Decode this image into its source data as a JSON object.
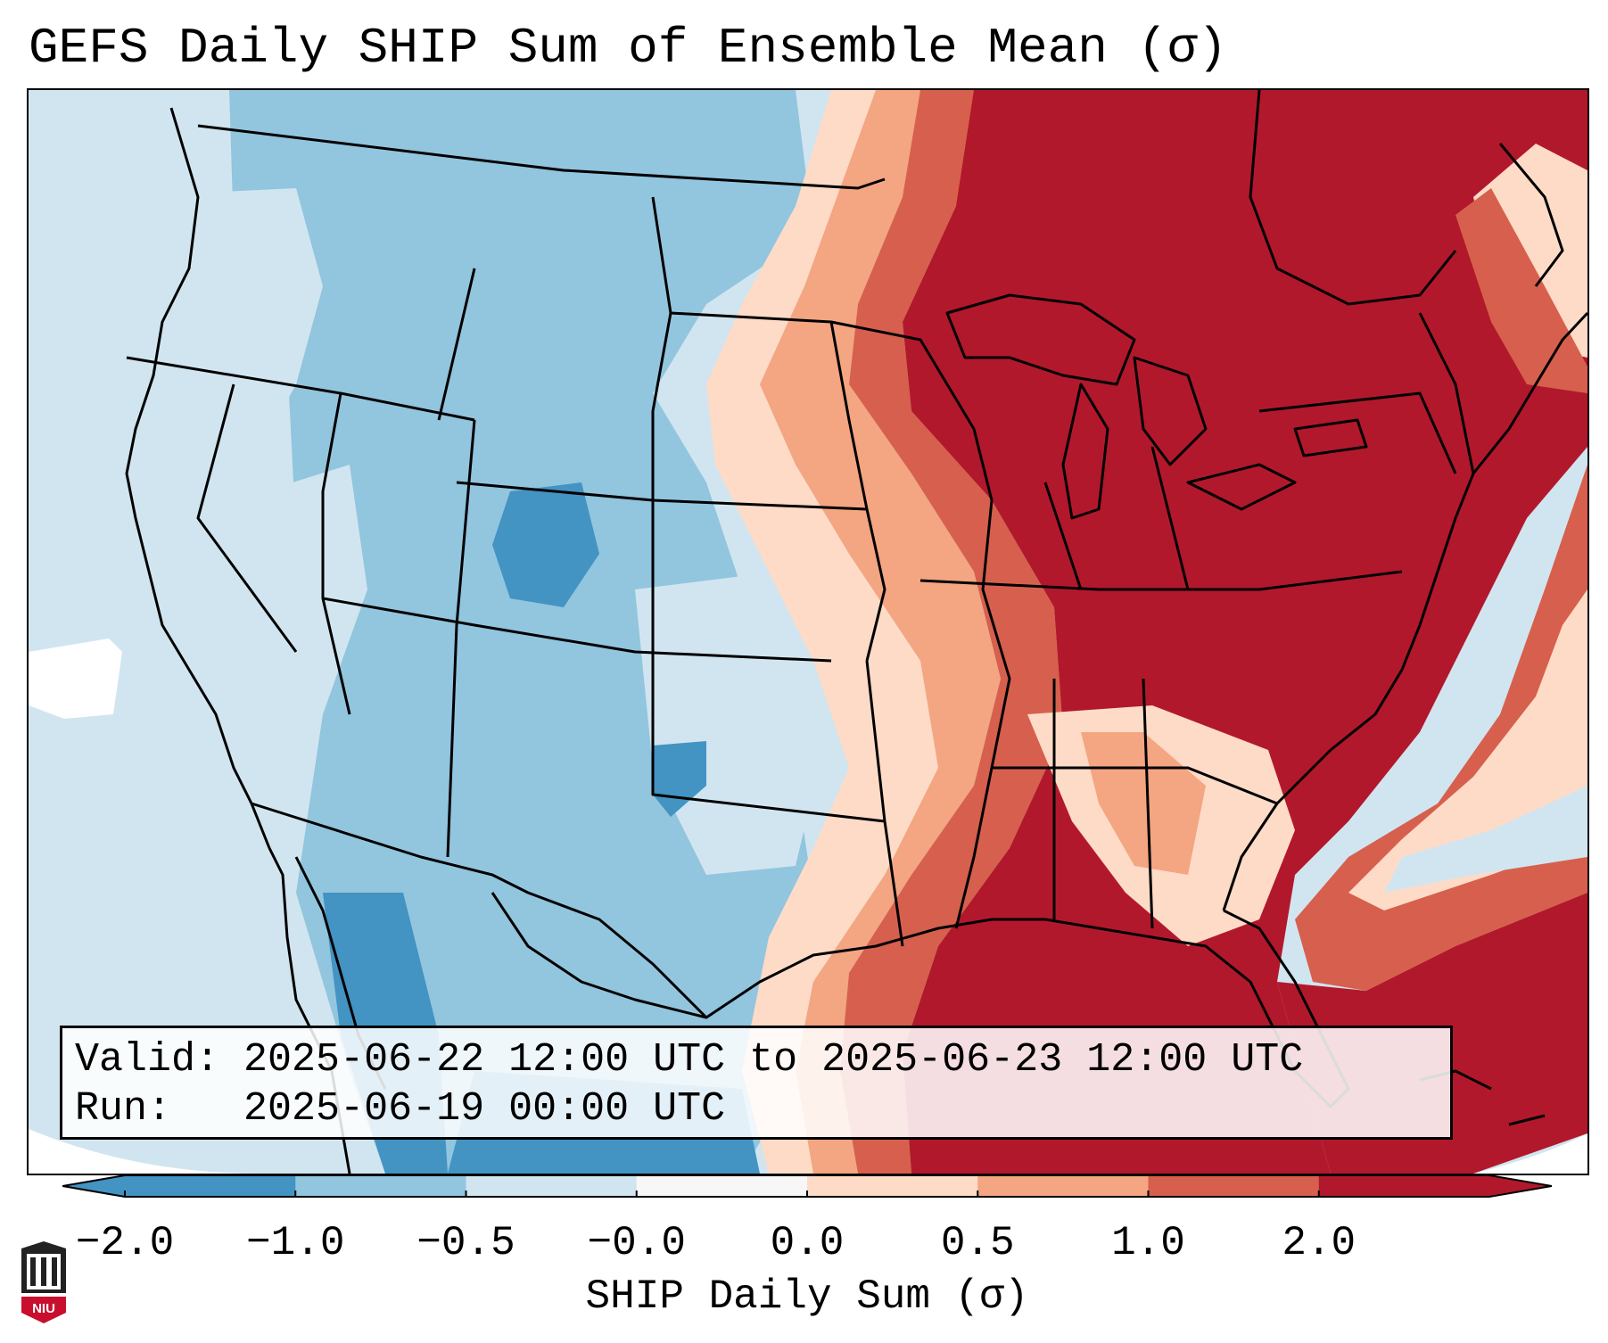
{
  "title": "GEFS Daily SHIP Sum of Ensemble Mean (σ)",
  "info": {
    "valid_label": "Valid:",
    "valid_value": "2025-06-22 12:00 UTC to 2025-06-23 12:00 UTC",
    "run_label": "Run:",
    "run_value": "2025-06-19 00:00 UTC"
  },
  "colorbar": {
    "label": "SHIP Daily Sum (σ)",
    "tick_labels": [
      "−2.0",
      "−1.0",
      "−0.5",
      "−0.0",
      "0.0",
      "0.5",
      "1.0",
      "2.0"
    ],
    "colors": [
      "#4393c3",
      "#92c5de",
      "#d1e5f0",
      "#f7f7f7",
      "#fddbc7",
      "#f4a582",
      "#d6604d",
      "#b2182b"
    ],
    "extend": "both"
  },
  "map": {
    "region": "Contiguous United States",
    "colors": {
      "strong_negative": "#4393c3",
      "negative": "#92c5de",
      "weak_negative": "#d1e5f0",
      "neutral": "#f7f7f7",
      "weak_positive": "#fddbc7",
      "positive": "#f4a582",
      "moderate_positive": "#d6604d",
      "strong_positive": "#b2182b",
      "boundary": "#000000"
    }
  },
  "logo": {
    "text": "NIU",
    "icon": "university-seal-icon"
  }
}
